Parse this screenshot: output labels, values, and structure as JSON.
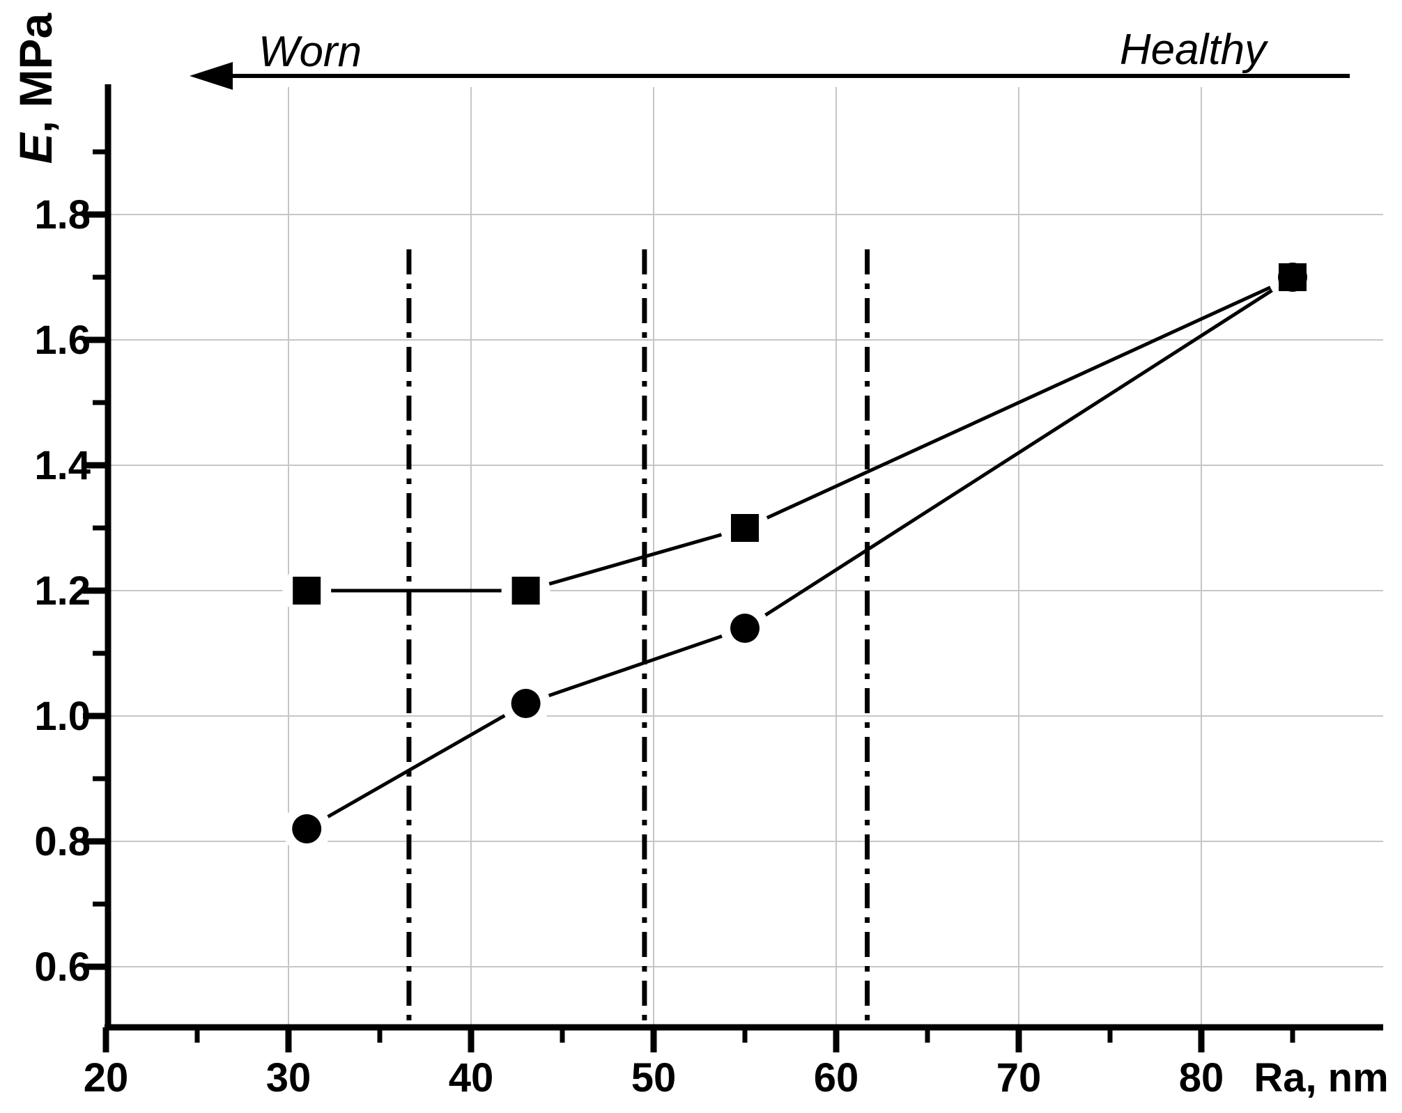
{
  "chart_data": {
    "type": "line",
    "title": "",
    "xlabel": "Ra, nm",
    "ylabel": "E, MPa",
    "ylabel_parts": {
      "italic": "E",
      "rest": ", MPa"
    },
    "xlim": [
      20,
      90
    ],
    "ylim": [
      0.5,
      2.0
    ],
    "grid": true,
    "x_axis": {
      "major_ticks": [
        20,
        30,
        40,
        50,
        60,
        70,
        80
      ],
      "minor_ticks": [
        25,
        35,
        45,
        55,
        65,
        75,
        85
      ],
      "tick_labels": [
        "20",
        "30",
        "40",
        "50",
        "60",
        "70",
        "80"
      ]
    },
    "y_axis": {
      "major_ticks": [
        0.6,
        0.8,
        1.0,
        1.2,
        1.4,
        1.6,
        1.8
      ],
      "minor_ticks": [
        0.7,
        0.9,
        1.1,
        1.3,
        1.5,
        1.7,
        1.9
      ],
      "tick_labels": [
        "0.6",
        "0.8",
        "1.0",
        "1.2",
        "1.4",
        "1.6",
        "1.8"
      ]
    },
    "series": [
      {
        "name": "squares",
        "marker": "square",
        "x": [
          31,
          43,
          55,
          85
        ],
        "y": [
          1.2,
          1.2,
          1.3,
          1.7
        ]
      },
      {
        "name": "circles",
        "marker": "circle",
        "x": [
          31,
          43,
          55,
          85
        ],
        "y": [
          0.82,
          1.02,
          1.14,
          1.7
        ]
      }
    ],
    "reference_lines": {
      "style": "dash-dot",
      "x_values": [
        36.6,
        49.5,
        61.7
      ]
    },
    "annotations": {
      "worn_label": "Worn",
      "healthy_label": "Healthy",
      "arrow_direction": "left"
    },
    "colors": {
      "data": "#000000",
      "grid": "#c6c6c6",
      "axis": "#000000",
      "background": "#ffffff"
    }
  }
}
